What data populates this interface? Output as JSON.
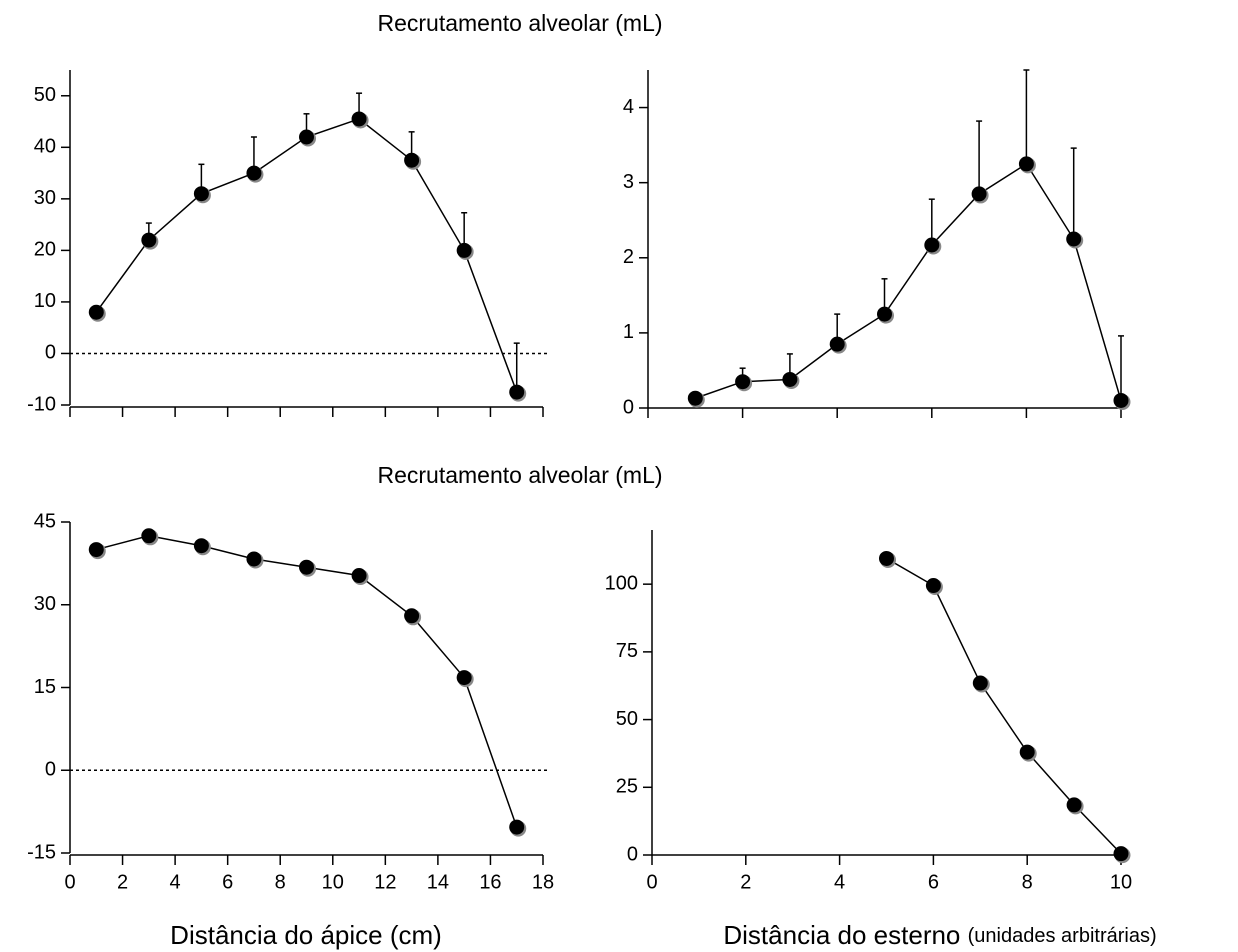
{
  "chart_data": [
    {
      "type": "line",
      "title": "Recrutamento alveolar (mL)",
      "color": "#000000",
      "x": [
        1,
        3,
        5,
        7,
        9,
        11,
        13,
        15,
        17
      ],
      "values": [
        8,
        22,
        31,
        35,
        42,
        45.5,
        37.5,
        20,
        -7.5
      ],
      "errors": [
        null,
        3.3,
        5.7,
        7,
        4.5,
        5,
        5.5,
        7.3,
        9.5
      ],
      "xlim": [
        0,
        18
      ],
      "ylim": [
        -10,
        55
      ],
      "xticks": [
        0,
        2,
        4,
        6,
        8,
        10,
        12,
        14,
        16,
        18
      ],
      "show_xtick_labels": false,
      "yticks": [
        -10,
        0,
        10,
        20,
        30,
        40,
        50
      ],
      "zero_line": true
    },
    {
      "type": "line",
      "color": "#000000",
      "x": [
        1,
        2,
        3,
        4,
        5,
        6,
        7,
        8,
        9,
        10
      ],
      "values": [
        0.13,
        0.35,
        0.38,
        0.85,
        1.25,
        2.17,
        2.85,
        3.25,
        2.25,
        0.1
      ],
      "errors": [
        null,
        0.18,
        0.34,
        0.4,
        0.47,
        0.61,
        0.97,
        1.25,
        1.21,
        0.86
      ],
      "xlim": [
        0,
        10
      ],
      "ylim": [
        0,
        4.5
      ],
      "xticks": [
        0,
        2,
        4,
        6,
        8,
        10
      ],
      "show_xtick_labels": false,
      "yticks": [
        0,
        1,
        2,
        3,
        4
      ],
      "zero_line": false
    },
    {
      "type": "line",
      "title": "Recrutamento alveolar (mL)",
      "xlabel": "Distância do ápice (cm)",
      "color": "#000000",
      "x": [
        1,
        3,
        5,
        7,
        9,
        11,
        13,
        15,
        17
      ],
      "values": [
        40,
        42.5,
        40.7,
        38.3,
        36.8,
        35.3,
        28,
        16.8,
        -10.3
      ],
      "xlim": [
        0,
        18
      ],
      "ylim": [
        -15,
        45
      ],
      "xticks": [
        0,
        2,
        4,
        6,
        8,
        10,
        12,
        14,
        16,
        18
      ],
      "show_xtick_labels": true,
      "yticks": [
        -15,
        0,
        15,
        30,
        45
      ],
      "zero_line": true
    },
    {
      "type": "line",
      "xlabel": "Distância do esterno",
      "xlabel_suffix": "(unidades arbitrárias)",
      "color": "#000000",
      "x": [
        5,
        6,
        7,
        8,
        9,
        10
      ],
      "values": [
        109.5,
        99.5,
        63.5,
        38,
        18.5,
        0.5
      ],
      "xlim": [
        0,
        10
      ],
      "ylim": [
        0,
        120
      ],
      "xticks": [
        0,
        2,
        4,
        6,
        8,
        10
      ],
      "show_xtick_labels": true,
      "yticks": [
        0,
        25,
        50,
        75,
        100
      ],
      "zero_line": false
    }
  ]
}
